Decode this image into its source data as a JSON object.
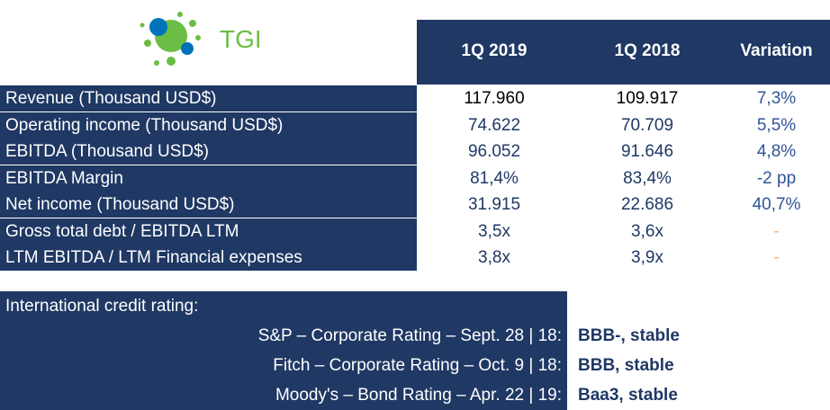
{
  "header": {
    "logo_text": "TGI",
    "columns": [
      "1Q 2019",
      "1Q 2018",
      "Variation"
    ]
  },
  "table": {
    "rows": [
      [
        "Revenue (Thousand USD$)",
        "117.960",
        "109.917",
        "7,3%"
      ],
      [
        "Operating income (Thousand USD$)",
        "74.622",
        "70.709",
        "5,5%"
      ],
      [
        "EBITDA (Thousand USD$)",
        "96.052",
        "91.646",
        "4,8%"
      ],
      [
        "EBITDA Margin",
        "81,4%",
        "83,4%",
        "-2 pp"
      ],
      [
        "Net income (Thousand USD$)",
        "31.915",
        "22.686",
        "40,7%"
      ],
      [
        "Gross total debt / EBITDA LTM",
        "3,5x",
        "3,6x",
        "-"
      ],
      [
        "LTM EBITDA / LTM Financial expenses",
        "3,8x",
        "3,9x",
        "-"
      ]
    ]
  },
  "ratings": {
    "title": "International credit rating:",
    "items": [
      [
        "S&P – Corporate Rating – Sept. 28 | 18:",
        "BBB-, stable"
      ],
      [
        "Fitch – Corporate Rating – Oct. 9 | 18:",
        "BBB, stable"
      ],
      [
        "Moody's – Bond Rating – Apr. 22 | 19:",
        "Baa3, stable"
      ]
    ]
  }
}
